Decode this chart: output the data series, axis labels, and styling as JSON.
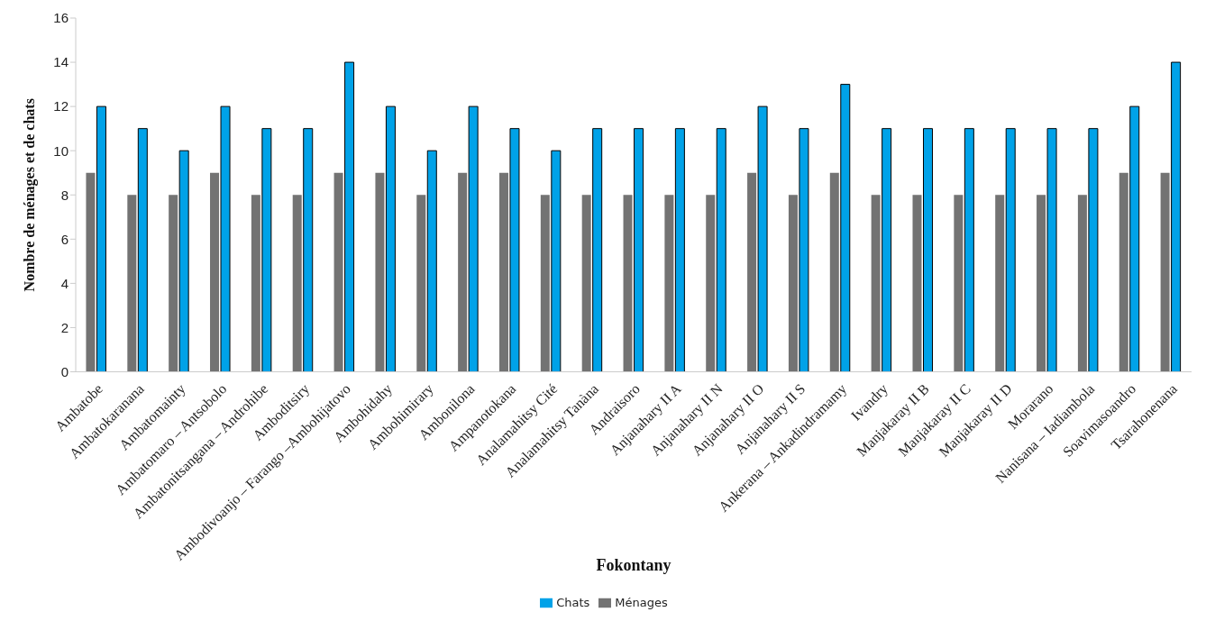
{
  "chart_data": {
    "type": "bar",
    "xlabel": "Fokontany",
    "ylabel": "Nombre de ménages et de chats",
    "categories": [
      "Ambatobe",
      "Ambatokaranana",
      "Ambatomainty",
      "Ambatomaro – Antsobolo",
      "Ambatonitsangana – Androhibe",
      "Amboditsiry",
      "Ambodivoanjo – Farango –Ambohijatovo",
      "Ambohidahy",
      "Ambohimirary",
      "Ambonilona",
      "Ampanotokana",
      "Analamahitsy Cité",
      "Analamahitsy Tanàna",
      "Andraisoro",
      "Anjanahary II A",
      "Anjanahary II N",
      "Anjanahary II O",
      "Anjanahary II S",
      "Ankerana – Ankadindramamy",
      "Ivandry",
      "Manjakaray II B",
      "Manjakaray II C",
      "Manjakaray II D",
      "Morarano",
      "Nanisana – Iadiambola",
      "Soavimasoandro",
      "Tsarahonenana"
    ],
    "series": [
      {
        "name": "Ménages",
        "color": "#737373",
        "values": [
          9,
          8,
          8,
          9,
          8,
          8,
          9,
          9,
          8,
          9,
          9,
          8,
          8,
          8,
          8,
          8,
          9,
          8,
          9,
          8,
          8,
          8,
          8,
          8,
          8,
          9,
          9
        ]
      },
      {
        "name": "Chats",
        "color": "#00a2e8",
        "values": [
          12,
          11,
          10,
          12,
          11,
          11,
          14,
          12,
          10,
          12,
          11,
          10,
          11,
          11,
          11,
          11,
          12,
          11,
          13,
          11,
          11,
          11,
          11,
          11,
          11,
          12,
          14
        ]
      }
    ],
    "ylim": [
      0,
      16
    ],
    "yticks": [
      0,
      2,
      4,
      6,
      8,
      10,
      12,
      14,
      16
    ],
    "grid": false,
    "legend": "bottom"
  }
}
